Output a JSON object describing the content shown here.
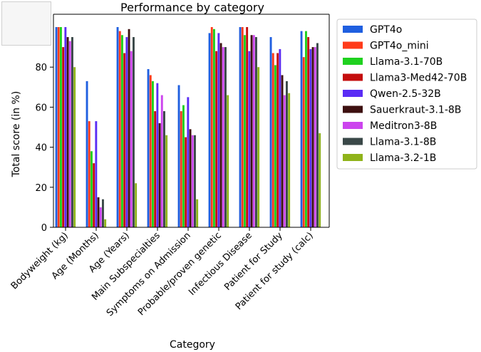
{
  "chart_data": {
    "type": "bar",
    "title": "Performance by category",
    "xlabel": "Category",
    "ylabel": "Total score (in %)",
    "ylim": [
      0,
      100
    ],
    "yticks": [
      0,
      20,
      40,
      60,
      80
    ],
    "grid": false,
    "legend_position": "right",
    "categories": [
      "Bodyweight (kg)",
      "Age (Months)",
      "Age (Years)",
      "Main Subspecialties",
      "Symptoms on Admission",
      "Probable/proven genetic",
      "Infectious Disease",
      "Patient for Study",
      "Patient for study (calc)"
    ],
    "series": [
      {
        "name": "GPT4o",
        "color": "#1f5fe0",
        "values": [
          100,
          73,
          100,
          79,
          71,
          97,
          100,
          95,
          98
        ]
      },
      {
        "name": "GPT4o_mini",
        "color": "#ff3b1a",
        "values": [
          100,
          53,
          98,
          76,
          58,
          100,
          100,
          87,
          85
        ]
      },
      {
        "name": "Llama-3.1-70B",
        "color": "#1fd11f",
        "values": [
          100,
          38,
          96,
          73,
          61,
          99,
          96,
          81,
          98
        ]
      },
      {
        "name": "Llama3-Med42-70B",
        "color": "#c40d0d",
        "values": [
          90,
          32,
          87,
          58,
          45,
          88,
          100,
          87,
          95
        ]
      },
      {
        "name": "Qwen-2.5-32B",
        "color": "#5a2cf5",
        "values": [
          100,
          53,
          95,
          72,
          65,
          97,
          88,
          89,
          89
        ]
      },
      {
        "name": "Sauerkraut-3.1-8B",
        "color": "#3d1010",
        "values": [
          95,
          15,
          99,
          52,
          49,
          92,
          96,
          76,
          90
        ]
      },
      {
        "name": "Meditron3-8B",
        "color": "#cc44ee",
        "values": [
          93,
          10,
          88,
          66,
          46,
          90,
          96,
          66,
          90
        ]
      },
      {
        "name": "Llama-3.1-8B",
        "color": "#3a4848",
        "values": [
          95,
          14,
          95,
          58,
          46,
          90,
          95,
          73,
          92
        ]
      },
      {
        "name": "Llama-3.2-1B",
        "color": "#8fb31a",
        "values": [
          80,
          4,
          22,
          46,
          14,
          66,
          80,
          67,
          47
        ]
      }
    ]
  }
}
